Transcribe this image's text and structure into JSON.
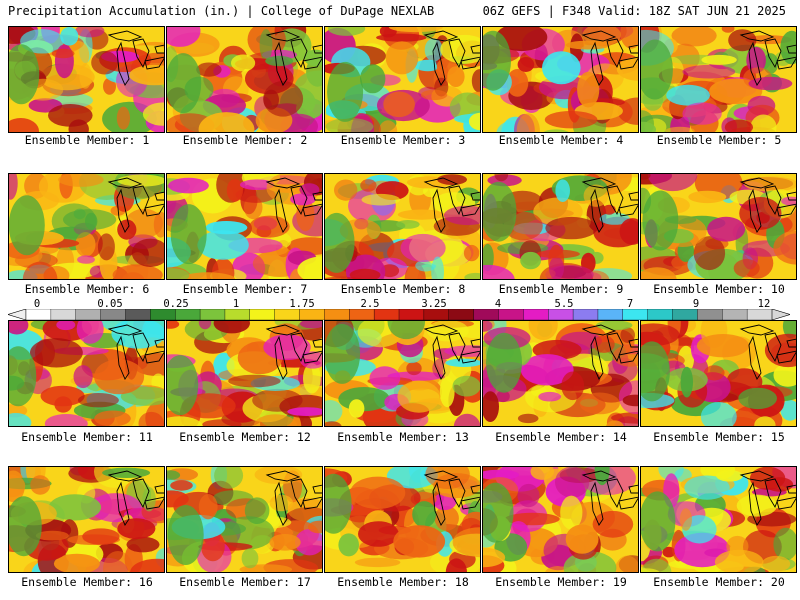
{
  "header": {
    "title": "Precipitation Accumulation (in.) | College of DuPage NEXLAB",
    "run_info": "06Z GEFS | F348 Valid: 18Z SAT JUN 21 2025"
  },
  "members": [
    {
      "label": "Ensemble Member: 1"
    },
    {
      "label": "Ensemble Member: 2"
    },
    {
      "label": "Ensemble Member: 3"
    },
    {
      "label": "Ensemble Member: 4"
    },
    {
      "label": "Ensemble Member: 5"
    },
    {
      "label": "Ensemble Member: 6"
    },
    {
      "label": "Ensemble Member: 7"
    },
    {
      "label": "Ensemble Member: 8"
    },
    {
      "label": "Ensemble Member: 9"
    },
    {
      "label": "Ensemble Member: 10"
    },
    {
      "label": "Ensemble Member: 11"
    },
    {
      "label": "Ensemble Member: 12"
    },
    {
      "label": "Ensemble Member: 13"
    },
    {
      "label": "Ensemble Member: 14"
    },
    {
      "label": "Ensemble Member: 15"
    },
    {
      "label": "Ensemble Member: 16"
    },
    {
      "label": "Ensemble Member: 17"
    },
    {
      "label": "Ensemble Member: 18"
    },
    {
      "label": "Ensemble Member: 19"
    },
    {
      "label": "Ensemble Member: 20"
    }
  ],
  "colorbar": {
    "labels": [
      "0",
      "0.05",
      "0.25",
      "1",
      "1.75",
      "2.5",
      "3.25",
      "4",
      "5.5",
      "7",
      "9",
      "12"
    ],
    "colors": [
      "#ffffff",
      "#d8d8d8",
      "#b0b0b0",
      "#888888",
      "#5a5a5a",
      "#2e8b2e",
      "#4aa83a",
      "#7cc43c",
      "#b8dc2c",
      "#f3f31a",
      "#f9d51a",
      "#fab414",
      "#f58f12",
      "#ee6414",
      "#e23412",
      "#cc1414",
      "#a80e0e",
      "#8c0a14",
      "#a00a5a",
      "#c81488",
      "#e41cc4",
      "#c850e6",
      "#8c7cf0",
      "#5ab4f8",
      "#3ce6f0",
      "#2cc8c8",
      "#30a8a0",
      "#909090",
      "#b4b4b4",
      "#d8d8d8"
    ]
  }
}
